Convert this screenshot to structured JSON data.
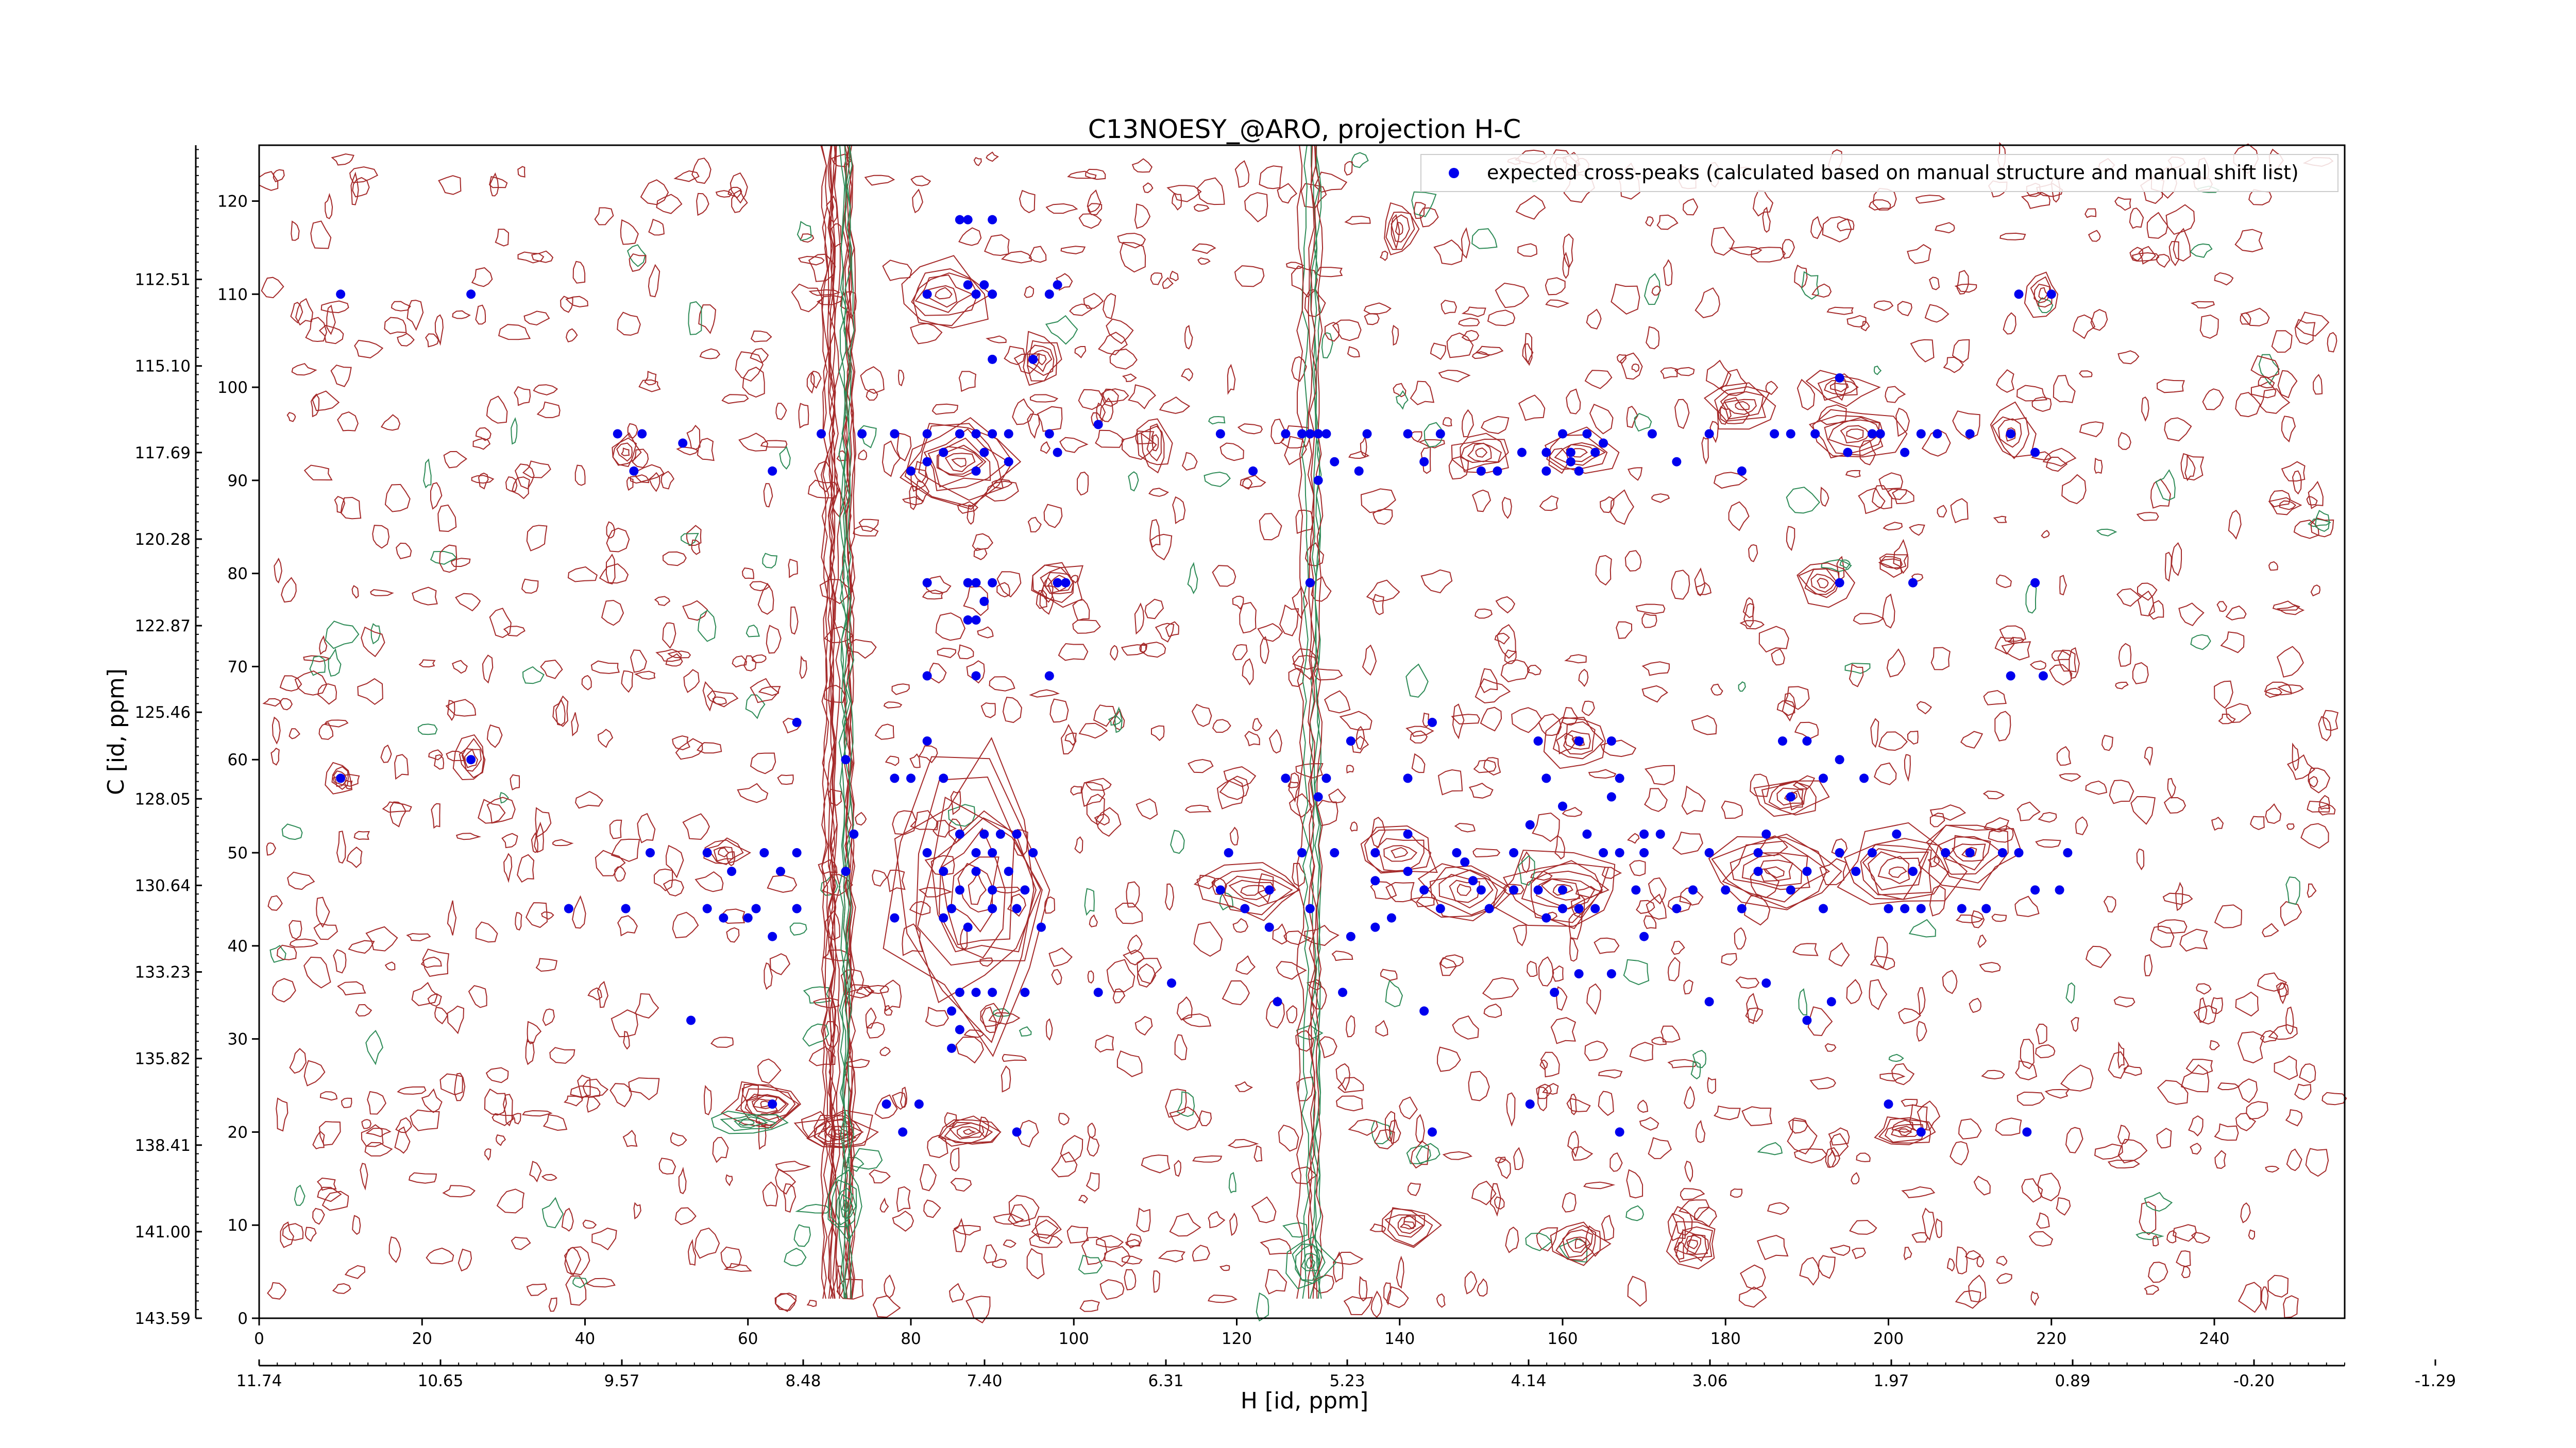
{
  "chart_data": {
    "type": "scatter",
    "title": "C13NOESY_@ARO, projection H-C",
    "xlabel": "H [id, ppm]",
    "ylabel": "C [id, ppm]",
    "xlim": [
      0,
      256
    ],
    "ylim": [
      0,
      126
    ],
    "x_index_ticks": [
      "0",
      "20",
      "40",
      "60",
      "80",
      "100",
      "120",
      "140",
      "160",
      "180",
      "200",
      "220",
      "240"
    ],
    "x_ppm_ticks": [
      "11.74",
      "10.65",
      "9.57",
      "8.48",
      "7.40",
      "6.31",
      "5.23",
      "4.14",
      "3.06",
      "1.97",
      "0.89",
      "-0.20",
      "-1.29"
    ],
    "y_index_ticks": [
      "0",
      "10",
      "20",
      "30",
      "40",
      "50",
      "60",
      "70",
      "80",
      "90",
      "100",
      "110",
      "120"
    ],
    "y_ppm_ticks": [
      "143.59",
      "141.00",
      "138.41",
      "135.82",
      "133.23",
      "130.64",
      "128.05",
      "125.46",
      "122.87",
      "120.28",
      "117.69",
      "115.10",
      "112.51"
    ],
    "contour_colors": {
      "positive": "#a52a2a",
      "negative": "#2e8b57"
    },
    "legend": {
      "label": "expected cross-peaks (calculated based on manual structure and manual shift list)",
      "position": "upper-right",
      "marker_color": "#0000ee"
    },
    "series": [
      {
        "name": "expected cross-peaks (calculated based on manual structure and manual shift list)",
        "points": [
          [
            10,
            110
          ],
          [
            26,
            110
          ],
          [
            10,
            58
          ],
          [
            26,
            60
          ],
          [
            44,
            95
          ],
          [
            47,
            95
          ],
          [
            46,
            91
          ],
          [
            52,
            94
          ],
          [
            63,
            91
          ],
          [
            69,
            95
          ],
          [
            82,
            95
          ],
          [
            86,
            95
          ],
          [
            84,
            93
          ],
          [
            88,
            95
          ],
          [
            89,
            93
          ],
          [
            90,
            95
          ],
          [
            92,
            95
          ],
          [
            97,
            95
          ],
          [
            98,
            93
          ],
          [
            103,
            96
          ],
          [
            92,
            92
          ],
          [
            88,
            91
          ],
          [
            80,
            91
          ],
          [
            74,
            95
          ],
          [
            78,
            95
          ],
          [
            82,
            92
          ],
          [
            87,
            111
          ],
          [
            88,
            110
          ],
          [
            89,
            111
          ],
          [
            82,
            110
          ],
          [
            90,
            110
          ],
          [
            97,
            110
          ],
          [
            98,
            111
          ],
          [
            90,
            103
          ],
          [
            95,
            103
          ],
          [
            86,
            118
          ],
          [
            87,
            118
          ],
          [
            90,
            118
          ],
          [
            82,
            79
          ],
          [
            87,
            79
          ],
          [
            88,
            79
          ],
          [
            90,
            79
          ],
          [
            89,
            77
          ],
          [
            87,
            75
          ],
          [
            88,
            75
          ],
          [
            98,
            79
          ],
          [
            99,
            79
          ],
          [
            82,
            69
          ],
          [
            88,
            69
          ],
          [
            97,
            69
          ],
          [
            66,
            64
          ],
          [
            72,
            60
          ],
          [
            78,
            58
          ],
          [
            80,
            58
          ],
          [
            84,
            58
          ],
          [
            82,
            62
          ],
          [
            82,
            50
          ],
          [
            86,
            52
          ],
          [
            88,
            50
          ],
          [
            89,
            52
          ],
          [
            90,
            50
          ],
          [
            91,
            52
          ],
          [
            93,
            52
          ],
          [
            95,
            50
          ],
          [
            84,
            48
          ],
          [
            86,
            46
          ],
          [
            88,
            48
          ],
          [
            90,
            46
          ],
          [
            92,
            48
          ],
          [
            94,
            46
          ],
          [
            85,
            44
          ],
          [
            87,
            42
          ],
          [
            90,
            44
          ],
          [
            93,
            44
          ],
          [
            96,
            42
          ],
          [
            84,
            43
          ],
          [
            78,
            43
          ],
          [
            73,
            52
          ],
          [
            72,
            48
          ],
          [
            62,
            50
          ],
          [
            64,
            48
          ],
          [
            66,
            50
          ],
          [
            45,
            44
          ],
          [
            48,
            50
          ],
          [
            55,
            50
          ],
          [
            58,
            48
          ],
          [
            61,
            44
          ],
          [
            38,
            44
          ],
          [
            55,
            44
          ],
          [
            57,
            43
          ],
          [
            60,
            43
          ],
          [
            63,
            41
          ],
          [
            66,
            44
          ],
          [
            88,
            35
          ],
          [
            86,
            35
          ],
          [
            90,
            35
          ],
          [
            94,
            35
          ],
          [
            103,
            35
          ],
          [
            85,
            33
          ],
          [
            86,
            31
          ],
          [
            53,
            32
          ],
          [
            85,
            29
          ],
          [
            63,
            23
          ],
          [
            81,
            23
          ],
          [
            79,
            20
          ],
          [
            77,
            23
          ],
          [
            93,
            20
          ],
          [
            118,
            95
          ],
          [
            126,
            95
          ],
          [
            122,
            91
          ],
          [
            129,
            95
          ],
          [
            131,
            95
          ],
          [
            135,
            91
          ],
          [
            132,
            92
          ],
          [
            141,
            95
          ],
          [
            143,
            92
          ],
          [
            136,
            95
          ],
          [
            145,
            95
          ],
          [
            150,
            91
          ],
          [
            152,
            91
          ],
          [
            155,
            93
          ],
          [
            158,
            91
          ],
          [
            161,
            93
          ],
          [
            163,
            95
          ],
          [
            164,
            93
          ],
          [
            160,
            95
          ],
          [
            171,
            95
          ],
          [
            174,
            92
          ],
          [
            178,
            95
          ],
          [
            182,
            91
          ],
          [
            186,
            95
          ],
          [
            188,
            95
          ],
          [
            191,
            95
          ],
          [
            195,
            93
          ],
          [
            198,
            95
          ],
          [
            199,
            95
          ],
          [
            202,
            93
          ],
          [
            204,
            95
          ],
          [
            206,
            95
          ],
          [
            210,
            95
          ],
          [
            215,
            95
          ],
          [
            218,
            93
          ],
          [
            194,
            101
          ],
          [
            161,
            92
          ],
          [
            162,
            91
          ],
          [
            158,
            93
          ],
          [
            165,
            94
          ],
          [
            128,
            95
          ],
          [
            130,
            95
          ],
          [
            130,
            90
          ],
          [
            129,
            79
          ],
          [
            194,
            79
          ],
          [
            203,
            79
          ],
          [
            218,
            79
          ],
          [
            215,
            69
          ],
          [
            219,
            69
          ],
          [
            216,
            110
          ],
          [
            220,
            110
          ],
          [
            119,
            50
          ],
          [
            128,
            50
          ],
          [
            132,
            50
          ],
          [
            137,
            50
          ],
          [
            131,
            58
          ],
          [
            126,
            58
          ],
          [
            134,
            62
          ],
          [
            141,
            58
          ],
          [
            144,
            64
          ],
          [
            130,
            56
          ],
          [
            141,
            52
          ],
          [
            147,
            50
          ],
          [
            149,
            47
          ],
          [
            145,
            44
          ],
          [
            143,
            46
          ],
          [
            150,
            46
          ],
          [
            154,
            46
          ],
          [
            139,
            43
          ],
          [
            134,
            41
          ],
          [
            129,
            44
          ],
          [
            124,
            42
          ],
          [
            121,
            44
          ],
          [
            118,
            46
          ],
          [
            124,
            46
          ],
          [
            137,
            47
          ],
          [
            141,
            48
          ],
          [
            112,
            36
          ],
          [
            125,
            34
          ],
          [
            133,
            35
          ],
          [
            143,
            33
          ],
          [
            144,
            20
          ],
          [
            156,
            23
          ],
          [
            167,
            20
          ],
          [
            157,
            62
          ],
          [
            158,
            58
          ],
          [
            156,
            53
          ],
          [
            160,
            55
          ],
          [
            163,
            52
          ],
          [
            165,
            50
          ],
          [
            167,
            50
          ],
          [
            170,
            50
          ],
          [
            172,
            52
          ],
          [
            167,
            58
          ],
          [
            162,
            62
          ],
          [
            166,
            62
          ],
          [
            154,
            50
          ],
          [
            157,
            46
          ],
          [
            160,
            46
          ],
          [
            162,
            44
          ],
          [
            164,
            44
          ],
          [
            169,
            46
          ],
          [
            174,
            44
          ],
          [
            176,
            46
          ],
          [
            158,
            43
          ],
          [
            170,
            41
          ],
          [
            159,
            35
          ],
          [
            162,
            37
          ],
          [
            166,
            37
          ],
          [
            178,
            34
          ],
          [
            180,
            46
          ],
          [
            182,
            44
          ],
          [
            184,
            50
          ],
          [
            184,
            48
          ],
          [
            185,
            52
          ],
          [
            188,
            46
          ],
          [
            190,
            48
          ],
          [
            192,
            44
          ],
          [
            194,
            50
          ],
          [
            196,
            48
          ],
          [
            198,
            50
          ],
          [
            201,
            52
          ],
          [
            203,
            48
          ],
          [
            202,
            44
          ],
          [
            200,
            44
          ],
          [
            204,
            44
          ],
          [
            207,
            50
          ],
          [
            210,
            50
          ],
          [
            209,
            44
          ],
          [
            212,
            44
          ],
          [
            214,
            50
          ],
          [
            216,
            50
          ],
          [
            218,
            46
          ],
          [
            221,
            46
          ],
          [
            222,
            50
          ],
          [
            188,
            56
          ],
          [
            192,
            58
          ],
          [
            194,
            60
          ],
          [
            197,
            58
          ],
          [
            187,
            62
          ],
          [
            190,
            62
          ],
          [
            185,
            36
          ],
          [
            190,
            32
          ],
          [
            193,
            34
          ],
          [
            200,
            23
          ],
          [
            204,
            20
          ],
          [
            217,
            20
          ],
          [
            166,
            56
          ],
          [
            170,
            52
          ],
          [
            178,
            50
          ],
          [
            160,
            44
          ],
          [
            151,
            44
          ],
          [
            148,
            49
          ],
          [
            137,
            42
          ]
        ]
      }
    ]
  }
}
